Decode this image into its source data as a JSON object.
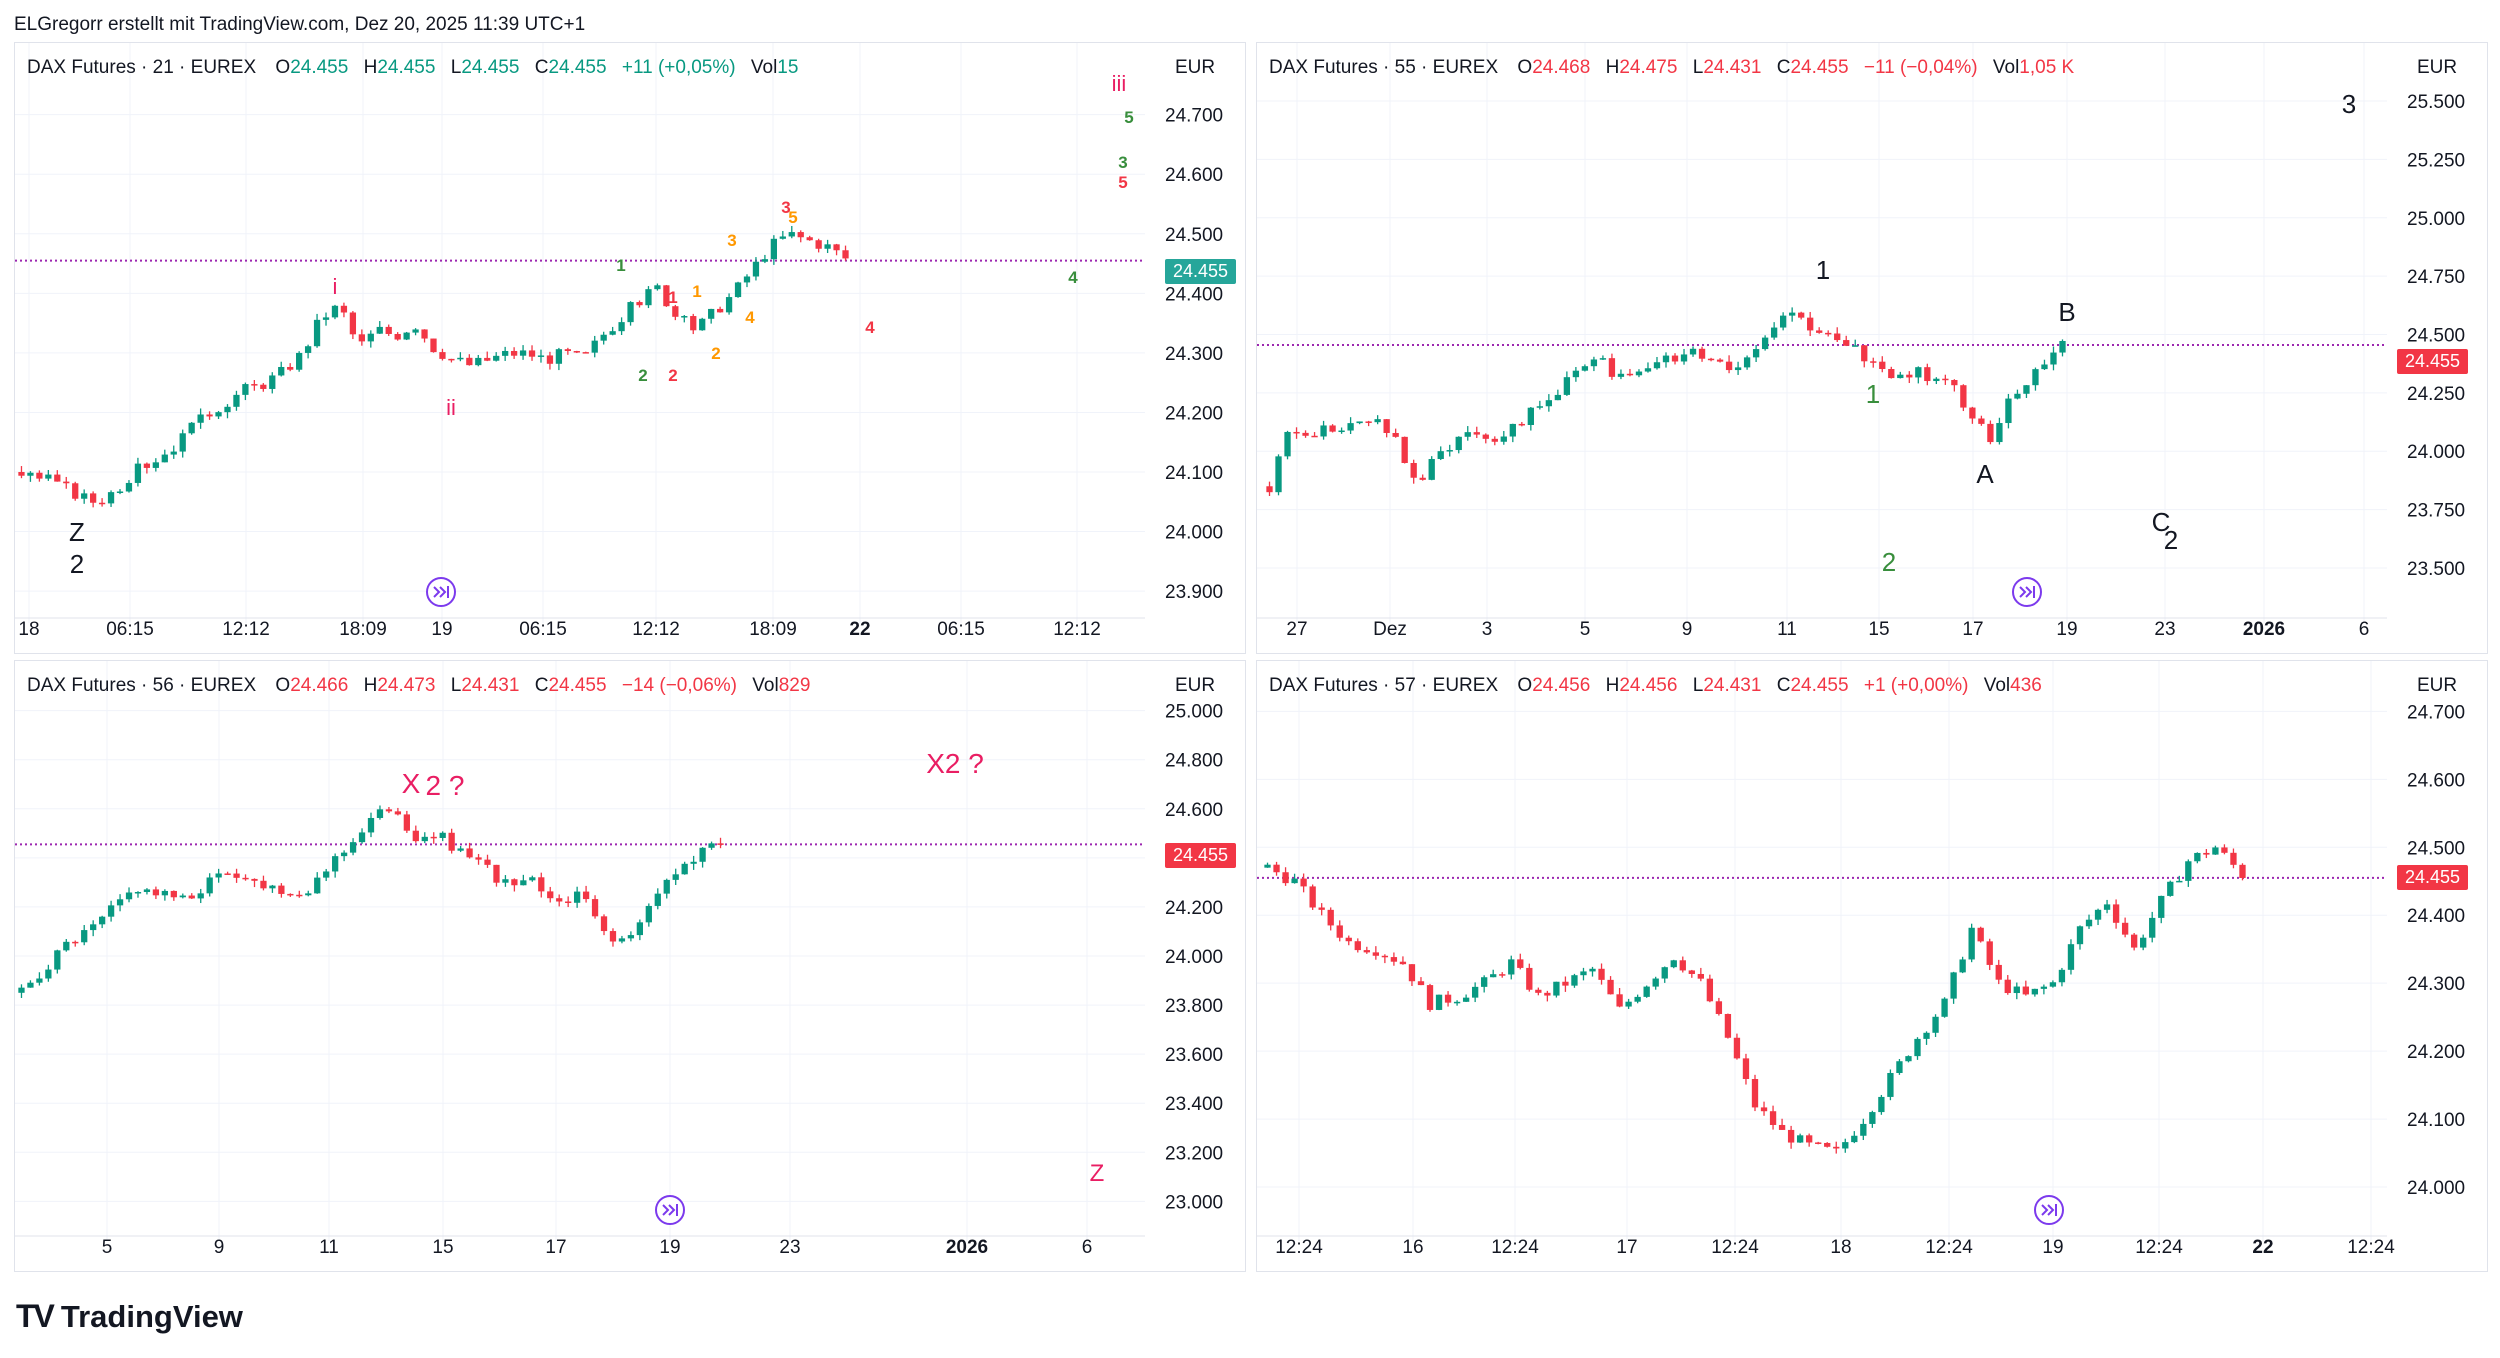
{
  "caption": "ELGregorr erstellt mit TradingView.com, Dez 20, 2025 11:39 UTC+1",
  "brand": {
    "logo": "TV",
    "name": "TradingView"
  },
  "colors": {
    "up": "#089981",
    "down": "#f23645",
    "grid": "#f0f3fa",
    "line": "#9c27b0",
    "tag_green": "#26a69a",
    "tag_red": "#f23645"
  },
  "icons": [
    "jump-to-realtime-icon",
    "tradingview-logo-icon"
  ],
  "panes": [
    {
      "id": "p1",
      "legend": {
        "title": "DAX Futures · 21 · EUREX",
        "o_label": "O",
        "o": "24.455",
        "h_label": "H",
        "h": "24.455",
        "l_label": "L",
        "l": "24.455",
        "c_label": "C",
        "c": "24.455",
        "chg": "+11 (+0,05%)",
        "vol_label": "Vol",
        "vol": "15",
        "dir": "up"
      },
      "unit": "EUR",
      "price_tag": {
        "text": "24.455",
        "color": "#26a69a"
      },
      "chart_data": {
        "type": "candlestick",
        "ylim": [
          23.88,
          24.77
        ],
        "yticks": [
          "24.700",
          "24.600",
          "24.500",
          "24.400",
          "24.300",
          "24.200",
          "24.100",
          "24.000",
          "23.900"
        ],
        "xticks": [
          {
            "t": "18",
            "b": false
          },
          {
            "t": "06:15",
            "b": false
          },
          {
            "t": "12:12",
            "b": false
          },
          {
            "t": "18:09",
            "b": false
          },
          {
            "t": "19",
            "b": false
          },
          {
            "t": "06:15",
            "b": false
          },
          {
            "t": "12:12",
            "b": false
          },
          {
            "t": "18:09",
            "b": false
          },
          {
            "t": "22",
            "b": true
          },
          {
            "t": "06:15",
            "b": false
          },
          {
            "t": "12:12",
            "b": false
          }
        ],
        "last": 24.455,
        "path": [
          24.1,
          24.09,
          24.08,
          24.06,
          24.05,
          24.07,
          24.1,
          24.12,
          24.14,
          24.17,
          24.2,
          24.22,
          24.24,
          24.25,
          24.27,
          24.3,
          24.36,
          24.38,
          24.31,
          24.34,
          24.33,
          24.35,
          24.31,
          24.29,
          24.28,
          24.29,
          24.3,
          24.3,
          24.29,
          24.3,
          24.29,
          24.33,
          24.36,
          24.39,
          24.41,
          24.36,
          24.34,
          24.37,
          24.4,
          24.44,
          24.48,
          24.5,
          24.49,
          24.48,
          24.46
        ],
        "annotations": [
          {
            "t": "iii",
            "c": "#e91e63"
          },
          {
            "t": "5",
            "c": "#388e3c"
          },
          {
            "t": "3",
            "c": "#388e3c"
          },
          {
            "t": "5",
            "c": "#f23645"
          },
          {
            "t": "3",
            "c": "#f23645"
          },
          {
            "t": "5",
            "c": "#ff9800"
          },
          {
            "t": "3",
            "c": "#ff9800"
          },
          {
            "t": "1",
            "c": "#388e3c"
          },
          {
            "t": "1",
            "c": "#ff9800"
          },
          {
            "t": "1",
            "c": "#f23645"
          },
          {
            "t": "4",
            "c": "#ff9800"
          },
          {
            "t": "4",
            "c": "#388e3c"
          },
          {
            "t": "4",
            "c": "#f23645"
          },
          {
            "t": "2",
            "c": "#ff9800"
          },
          {
            "t": "2",
            "c": "#388e3c"
          },
          {
            "t": "2",
            "c": "#f23645"
          },
          {
            "t": "i",
            "c": "#e91e63"
          },
          {
            "t": "ii",
            "c": "#e91e63"
          },
          {
            "t": "Z",
            "c": "#131722"
          },
          {
            "t": "2",
            "c": "#131722"
          }
        ]
      }
    },
    {
      "id": "p2",
      "legend": {
        "title": "DAX Futures · 55 · EUREX",
        "o_label": "O",
        "o": "24.468",
        "h_label": "H",
        "h": "24.475",
        "l_label": "L",
        "l": "24.431",
        "c_label": "C",
        "c": "24.455",
        "chg": "−11 (−0,04%)",
        "vol_label": "Vol",
        "vol": "1,05 K",
        "dir": "down"
      },
      "unit": "EUR",
      "price_tag": {
        "text": "24.455",
        "color": "#f23645"
      },
      "chart_data": {
        "type": "candlestick",
        "ylim": [
          23.35,
          25.62
        ],
        "yticks": [
          "25.500",
          "25.250",
          "25.000",
          "24.750",
          "24.500",
          "24.250",
          "24.000",
          "23.750",
          "23.500"
        ],
        "xticks": [
          {
            "t": "27",
            "b": false
          },
          {
            "t": "Dez",
            "b": false
          },
          {
            "t": "3",
            "b": false
          },
          {
            "t": "5",
            "b": false
          },
          {
            "t": "9",
            "b": false
          },
          {
            "t": "11",
            "b": false
          },
          {
            "t": "15",
            "b": false
          },
          {
            "t": "17",
            "b": false
          },
          {
            "t": "19",
            "b": false
          },
          {
            "t": "23",
            "b": false
          },
          {
            "t": "2026",
            "b": true
          },
          {
            "t": "6",
            "b": false
          }
        ],
        "last": 24.455,
        "path": [
          23.85,
          24.1,
          24.05,
          24.1,
          24.08,
          24.12,
          24.15,
          24.02,
          23.85,
          23.97,
          24.05,
          24.1,
          24.05,
          24.1,
          24.15,
          24.2,
          24.3,
          24.35,
          24.38,
          24.32,
          24.35,
          24.4,
          24.38,
          24.42,
          24.4,
          24.35,
          24.42,
          24.5,
          24.62,
          24.55,
          24.5,
          24.45,
          24.42,
          24.38,
          24.3,
          24.35,
          24.3,
          24.28,
          24.15,
          24.05,
          24.2,
          24.3,
          24.38,
          24.46
        ],
        "annotations": [
          {
            "t": "3",
            "c": "#131722"
          },
          {
            "t": "1",
            "c": "#131722"
          },
          {
            "t": "B",
            "c": "#131722"
          },
          {
            "t": "1",
            "c": "#388e3c"
          },
          {
            "t": "A",
            "c": "#131722"
          },
          {
            "t": "2",
            "c": "#388e3c"
          },
          {
            "t": "C",
            "c": "#131722"
          },
          {
            "t": "2",
            "c": "#131722"
          }
        ]
      }
    },
    {
      "id": "p3",
      "legend": {
        "title": "DAX Futures · 56 · EUREX",
        "o_label": "O",
        "o": "24.466",
        "h_label": "H",
        "h": "24.473",
        "l_label": "L",
        "l": "24.431",
        "c_label": "C",
        "c": "24.455",
        "chg": "−14 (−0,06%)",
        "vol_label": "Vol",
        "vol": "829",
        "dir": "down"
      },
      "unit": "EUR",
      "price_tag": {
        "text": "24.455",
        "color": "#f23645"
      },
      "chart_data": {
        "type": "candlestick",
        "ylim": [
          22.92,
          25.08
        ],
        "yticks": [
          "25.000",
          "24.800",
          "24.600",
          "24.400",
          "24.200",
          "24.000",
          "23.800",
          "23.600",
          "23.400",
          "23.200",
          "23.000"
        ],
        "xticks": [
          {
            "t": "5",
            "b": false
          },
          {
            "t": "9",
            "b": false
          },
          {
            "t": "11",
            "b": false
          },
          {
            "t": "15",
            "b": false
          },
          {
            "t": "17",
            "b": false
          },
          {
            "t": "19",
            "b": false
          },
          {
            "t": "23",
            "b": false
          },
          {
            "t": "2026",
            "b": true
          },
          {
            "t": "6",
            "b": false
          }
        ],
        "last": 24.455,
        "path": [
          23.85,
          23.95,
          24.05,
          24.1,
          24.2,
          24.28,
          24.25,
          24.22,
          24.3,
          24.35,
          24.3,
          24.28,
          24.25,
          24.35,
          24.45,
          24.55,
          24.62,
          24.45,
          24.5,
          24.4,
          24.35,
          24.28,
          24.3,
          24.22,
          24.25,
          24.1,
          24.05,
          24.2,
          24.35,
          24.4,
          24.48
        ],
        "annotations": [
          {
            "t": "X",
            "c": "#e91e63"
          },
          {
            "t": "2 ?",
            "c": "#e91e63"
          },
          {
            "t": "X2 ?",
            "c": "#e91e63"
          },
          {
            "t": "Z",
            "c": "#e91e63"
          }
        ]
      }
    },
    {
      "id": "p4",
      "legend": {
        "title": "DAX Futures · 57 · EUREX",
        "o_label": "O",
        "o": "24.456",
        "h_label": "H",
        "h": "24.456",
        "l_label": "L",
        "l": "24.431",
        "c_label": "C",
        "c": "24.455",
        "chg": "+1 (+0,00%)",
        "vol_label": "Vol",
        "vol": "436",
        "dir": "down"
      },
      "unit": "EUR",
      "price_tag": {
        "text": "24.455",
        "color": "#f23645"
      },
      "chart_data": {
        "type": "candlestick",
        "ylim": [
          23.95,
          24.73
        ],
        "yticks": [
          "24.700",
          "24.600",
          "24.500",
          "24.400",
          "24.300",
          "24.200",
          "24.100",
          "24.000"
        ],
        "xticks": [
          {
            "t": "12:24",
            "b": false
          },
          {
            "t": "16",
            "b": false
          },
          {
            "t": "12:24",
            "b": false
          },
          {
            "t": "17",
            "b": false
          },
          {
            "t": "12:24",
            "b": false
          },
          {
            "t": "18",
            "b": false
          },
          {
            "t": "12:24",
            "b": false
          },
          {
            "t": "19",
            "b": false
          },
          {
            "t": "12:24",
            "b": false
          },
          {
            "t": "22",
            "b": true
          },
          {
            "t": "12:24",
            "b": false
          }
        ],
        "last": 24.455,
        "path": [
          24.47,
          24.45,
          24.4,
          24.36,
          24.35,
          24.33,
          24.27,
          24.28,
          24.3,
          24.33,
          24.28,
          24.3,
          24.32,
          24.26,
          24.3,
          24.34,
          24.3,
          24.22,
          24.12,
          24.08,
          24.06,
          24.05,
          24.1,
          24.16,
          24.22,
          24.27,
          24.38,
          24.3,
          24.28,
          24.3,
          24.38,
          24.42,
          24.35,
          24.42,
          24.48,
          24.5,
          24.46
        ]
      }
    }
  ]
}
